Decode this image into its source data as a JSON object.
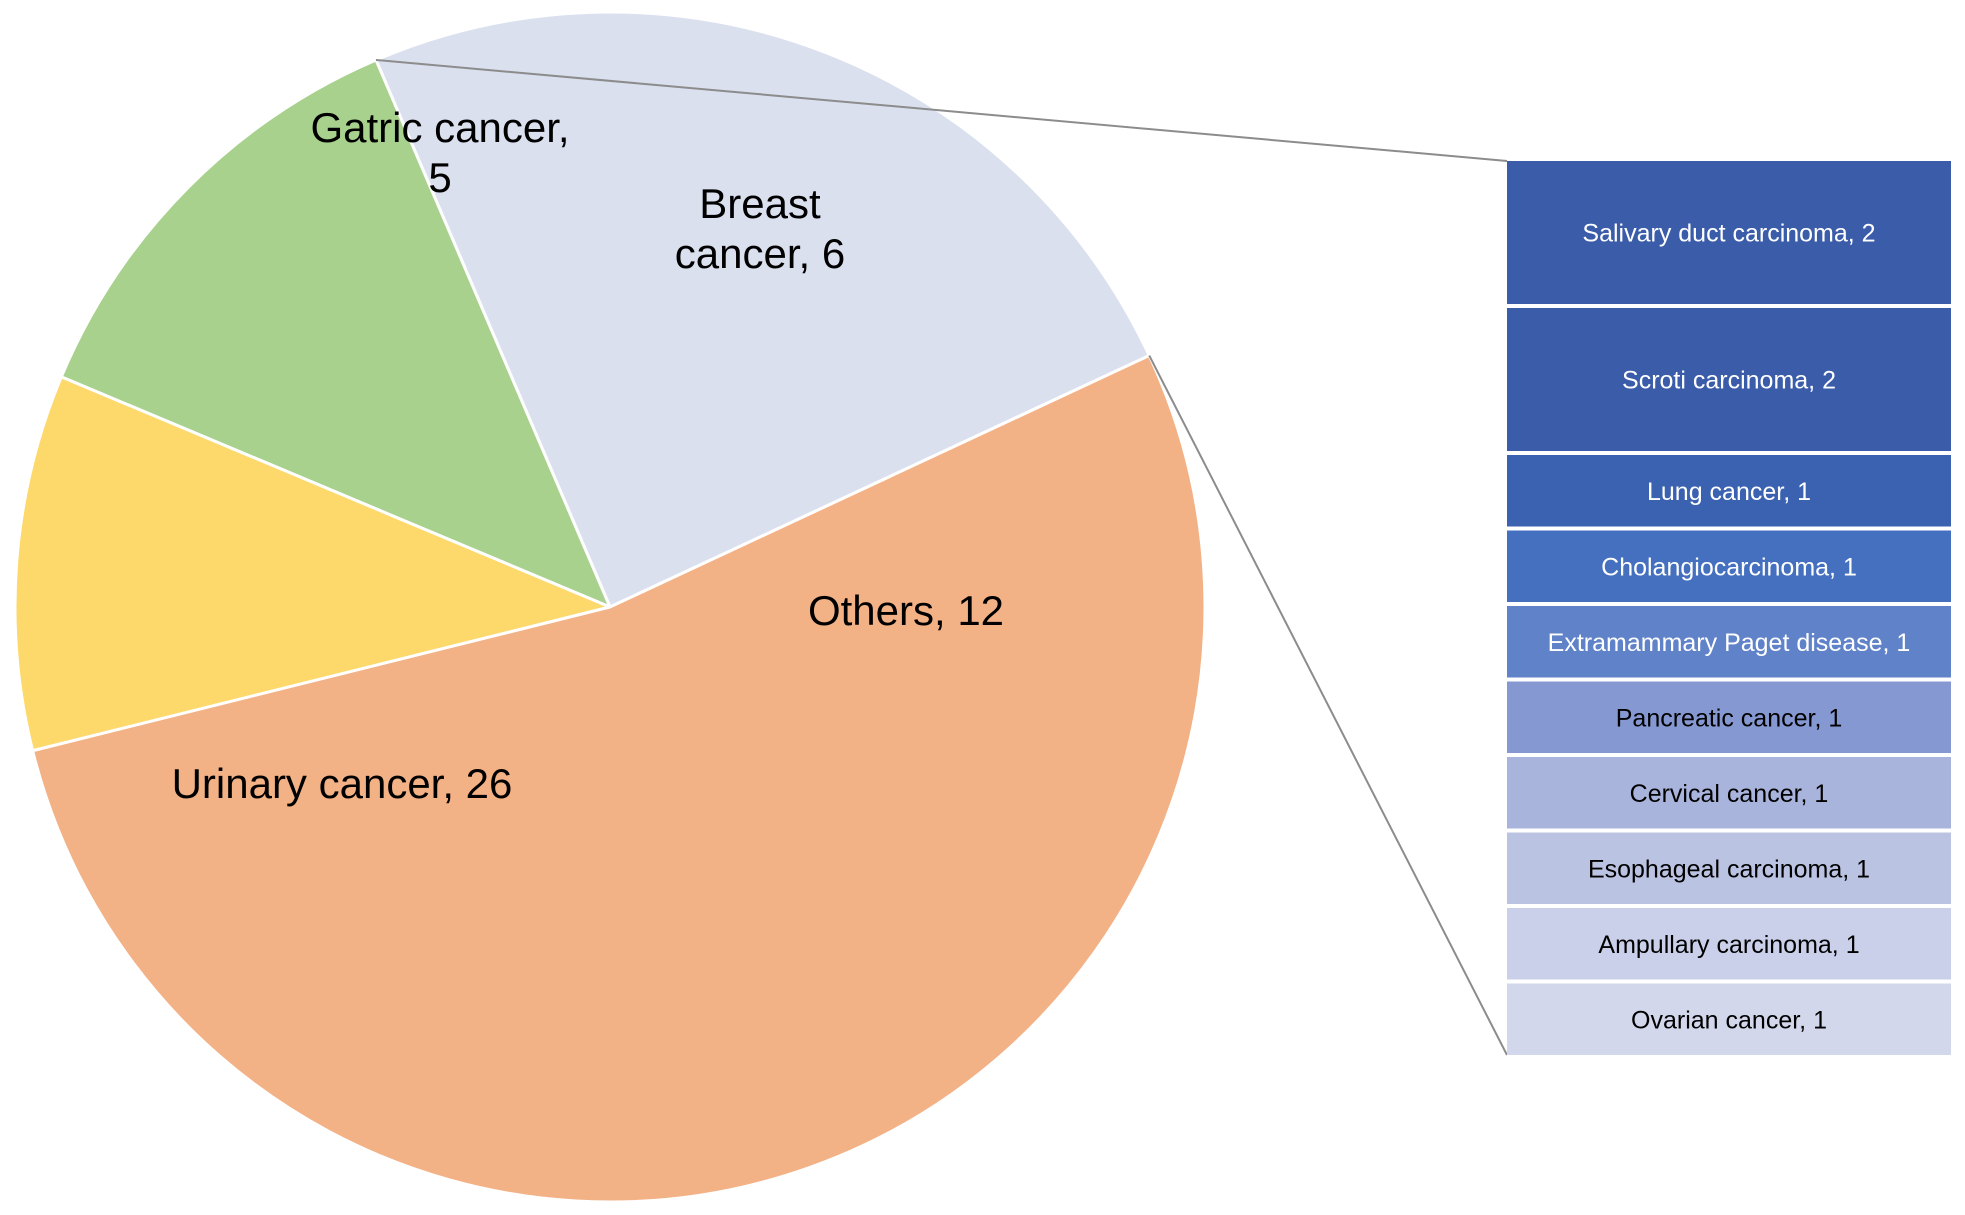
{
  "chart_data": [
    {
      "type": "pie",
      "start_angle_deg": -25,
      "direction": "counterclockwise",
      "slices": [
        {
          "label": "Others",
          "value": 12,
          "color": "#dbe0ef",
          "label_lines": [
            "Others, 12"
          ]
        },
        {
          "label": "Breast cancer",
          "value": 6,
          "color": "#a8d18d",
          "label_lines": [
            "Breast",
            "cancer, 6"
          ]
        },
        {
          "label": "Gatric cancer",
          "value": 5,
          "color": "#fdd86b",
          "label_lines": [
            "Gatric cancer,",
            "5"
          ]
        },
        {
          "label": "Urinary cancer",
          "value": 26,
          "color": "#f3b186",
          "label_lines": [
            "Urinary cancer, 26"
          ]
        }
      ],
      "exploded_slice": "Others"
    },
    {
      "type": "bar",
      "orientation": "stacked-vertical",
      "parent_slice": "Others",
      "categories": [
        "Salivary duct carcinoma",
        "Scroti carcinoma",
        "Lung cancer",
        "Cholangiocarcinoma",
        "Extramammary Paget disease",
        "Pancreatic cancer",
        "Cervical cancer",
        "Esophageal carcinoma",
        "Ampullary carcinoma",
        "Ovarian cancer"
      ],
      "values": [
        2,
        2,
        1,
        1,
        1,
        1,
        1,
        1,
        1,
        1
      ],
      "labels": [
        "Salivary duct carcinoma, 2",
        "Scroti carcinoma, 2",
        "Lung cancer, 1",
        "Cholangiocarcinoma, 1",
        "Extramammary Paget disease, 1",
        "Pancreatic cancer, 1",
        "Cervical cancer, 1",
        "Esophageal carcinoma, 1",
        "Ampullary carcinoma, 1",
        "Ovarian cancer, 1"
      ],
      "colors": [
        "#3a5ca9",
        "#3a5ca9",
        "#3a62b0",
        "#4470bf",
        "#5f82c9",
        "#8598d1",
        "#a9b4dc",
        "#bbc3e2",
        "#cad0e9",
        "#d2d7ec"
      ],
      "text_colors": [
        "#ffffff",
        "#ffffff",
        "#ffffff",
        "#ffffff",
        "#ffffff",
        "#000000",
        "#000000",
        "#000000",
        "#000000",
        "#000000"
      ]
    }
  ]
}
